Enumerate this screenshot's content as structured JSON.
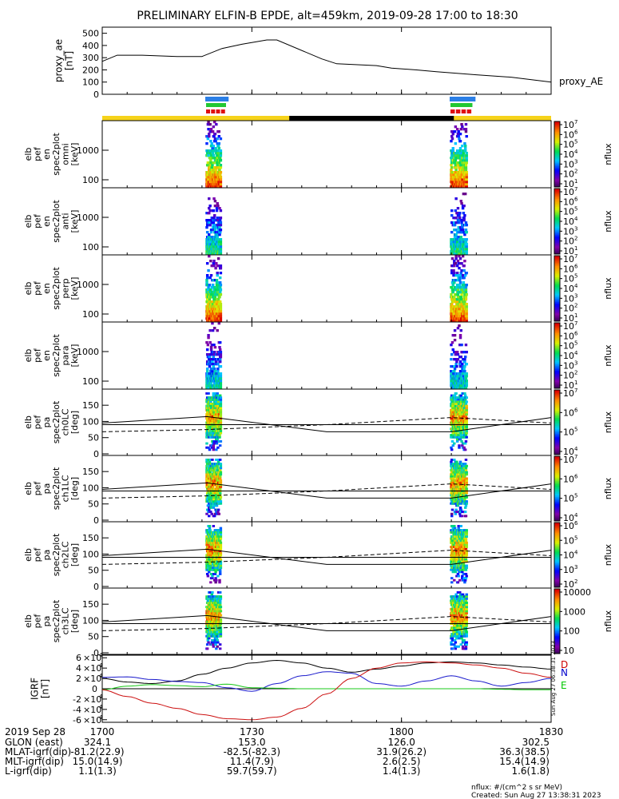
{
  "title": "PRELIMINARY ELFIN-B EPDE, alt=459km, 2019-09-28 17:00 to 18:30",
  "chart_data": {
    "type": "heatmap",
    "time_range": [
      "17:00",
      "18:30"
    ],
    "x_ticks": [
      "1700",
      "1730",
      "1800",
      "1830"
    ],
    "x_tick_minutes": [
      0,
      30,
      60,
      90
    ],
    "ae_panel": {
      "ylabel_lines": [
        "proxy_ae",
        "[nT]"
      ],
      "ylim": [
        0,
        550
      ],
      "yticks": [
        "0",
        "100",
        "200",
        "300",
        "400",
        "500"
      ],
      "legend": "proxy_AE",
      "t": [
        0,
        3,
        8,
        15,
        20,
        24,
        28,
        33,
        35,
        44,
        47,
        55,
        58,
        63,
        67,
        75,
        82,
        90
      ],
      "v": [
        270,
        320,
        320,
        310,
        310,
        375,
        410,
        445,
        445,
        290,
        250,
        235,
        215,
        200,
        185,
        160,
        140,
        100
      ]
    },
    "status_bars": {
      "science_zones": [
        [
          20.5,
          25.5
        ],
        [
          69.5,
          75.0
        ]
      ],
      "night_interval": [
        37.5,
        70.5
      ],
      "colors": {
        "blue": "#2b7fe6",
        "green": "#22c832",
        "red": "#e01010",
        "yellow": "#f6d31b",
        "black": "#000000"
      }
    },
    "energy_panels": [
      {
        "ylabel_lines": [
          "elb",
          "pef",
          "en",
          "spec2plot",
          "omni",
          "[keV]"
        ],
        "yticks": [
          "100",
          "1000"
        ],
        "cbar_ticks": [
          "10",
          "10",
          "10",
          "10",
          "10",
          "10",
          "10"
        ],
        "cbar_exps": [
          "1",
          "2",
          "3",
          "4",
          "5",
          "6",
          "7"
        ],
        "cbar_label": "nflux",
        "intensity": 1.0
      },
      {
        "ylabel_lines": [
          "elb",
          "pef",
          "en",
          "spec2plot",
          "anti",
          "[keV]"
        ],
        "yticks": [
          "100",
          "1000"
        ],
        "cbar_ticks": [
          "10",
          "10",
          "10",
          "10",
          "10",
          "10",
          "10"
        ],
        "cbar_exps": [
          "1",
          "2",
          "3",
          "4",
          "5",
          "6",
          "7"
        ],
        "cbar_label": "nflux",
        "intensity": 0.55
      },
      {
        "ylabel_lines": [
          "elb",
          "pef",
          "en",
          "spec2plot",
          "perp",
          "[keV]"
        ],
        "yticks": [
          "100",
          "1000"
        ],
        "cbar_ticks": [
          "10",
          "10",
          "10",
          "10",
          "10",
          "10",
          "10"
        ],
        "cbar_exps": [
          "1",
          "2",
          "3",
          "4",
          "5",
          "6",
          "7"
        ],
        "cbar_label": "nflux",
        "intensity": 1.0
      },
      {
        "ylabel_lines": [
          "elb",
          "pef",
          "en",
          "spec2plot",
          "para",
          "[keV]"
        ],
        "yticks": [
          "100",
          "1000"
        ],
        "cbar_ticks": [
          "10",
          "10",
          "10",
          "10",
          "10",
          "10",
          "10"
        ],
        "cbar_exps": [
          "1",
          "2",
          "3",
          "4",
          "5",
          "6",
          "7"
        ],
        "cbar_label": "nflux",
        "intensity": 0.5
      }
    ],
    "pitch_panels": [
      {
        "ylabel_lines": [
          "elb",
          "pef",
          "pa",
          "spec2plot",
          "ch0LC",
          "[deg]"
        ],
        "yticks": [
          "0",
          "50",
          "100",
          "150"
        ],
        "cbar_ticks": [
          "10",
          "10",
          "10",
          "10"
        ],
        "cbar_exps": [
          "4",
          "5",
          "6",
          "7"
        ],
        "cbar_label": "nflux"
      },
      {
        "ylabel_lines": [
          "elb",
          "pef",
          "pa",
          "spec2plot",
          "ch1LC",
          "[deg]"
        ],
        "yticks": [
          "0",
          "50",
          "100",
          "150"
        ],
        "cbar_ticks": [
          "10",
          "10",
          "10",
          "10"
        ],
        "cbar_exps": [
          "4",
          "5",
          "6",
          "7"
        ],
        "cbar_label": "nflux"
      },
      {
        "ylabel_lines": [
          "elb",
          "pef",
          "pa",
          "spec2plot",
          "ch2LC",
          "[deg]"
        ],
        "yticks": [
          "0",
          "50",
          "100",
          "150"
        ],
        "cbar_ticks": [
          "10",
          "10",
          "10",
          "10",
          "10"
        ],
        "cbar_exps": [
          "2",
          "3",
          "4",
          "5",
          "6"
        ],
        "cbar_label": "nflux"
      },
      {
        "ylabel_lines": [
          "elb",
          "pef",
          "pa",
          "spec2plot",
          "ch3LC",
          "[deg]"
        ],
        "yticks": [
          "0",
          "50",
          "100",
          "150"
        ],
        "cbar_ticks": [
          "10",
          "100",
          "1000",
          "10000"
        ],
        "cbar_exps": [
          "",
          "",
          "",
          ""
        ],
        "cbar_label": "nflux"
      }
    ],
    "loss_cone_deg": {
      "t": [
        0,
        21,
        45,
        70,
        90
      ],
      "solid": [
        95,
        115,
        68,
        68,
        112
      ],
      "dashed": [
        68,
        75,
        90,
        112,
        95
      ],
      "horizontal": 90
    },
    "mag_panel": {
      "ylabel_lines": [
        "IGRF",
        "[nT]"
      ],
      "ylim": [
        -65000,
        65000
      ],
      "ytick_mant": [
        "-6",
        "-4",
        "-2",
        "0",
        "2",
        "4",
        "6"
      ],
      "ytick_vals": [
        -60000,
        -40000,
        -20000,
        0,
        20000,
        40000,
        60000
      ],
      "labels": [
        "N",
        "E",
        "D"
      ],
      "label_colors": [
        "#0000cc",
        "#00c800",
        "#cc0000"
      ],
      "side_text": "Sun Aug 27 06:38:31 2023",
      "t": [
        0,
        5,
        10,
        15,
        20,
        25,
        30,
        35,
        40,
        45,
        50,
        55,
        60,
        65,
        70,
        75,
        80,
        85,
        90
      ],
      "black": [
        20000,
        13000,
        10000,
        15000,
        28000,
        40000,
        50000,
        55000,
        50000,
        40000,
        32000,
        38000,
        44000,
        50000,
        52000,
        50000,
        46000,
        42000,
        38000
      ],
      "blue": [
        22000,
        23000,
        18000,
        14000,
        12000,
        2000,
        -5000,
        10000,
        25000,
        33000,
        30000,
        10000,
        5000,
        15000,
        25000,
        15000,
        5000,
        12000,
        20000
      ],
      "green": [
        -2000,
        5000,
        8000,
        6000,
        4000,
        9000,
        2000,
        1000,
        0,
        0,
        0,
        0,
        0,
        0,
        0,
        0,
        -1000,
        -2000,
        -2000
      ],
      "red": [
        -2000,
        -15000,
        -28000,
        -38000,
        -50000,
        -58000,
        -60000,
        -55000,
        -38000,
        -10000,
        20000,
        40000,
        50000,
        52000,
        50000,
        46000,
        40000,
        30000,
        22000
      ]
    },
    "ephemeris": {
      "header_date": "2019 Sep 28",
      "rows": [
        {
          "label": "GLON (east)",
          "values": [
            "324.1",
            "153.0",
            "126.0",
            "302.5"
          ]
        },
        {
          "label": "MLAT-igrf(dip)",
          "values": [
            "-81.2(22.9)",
            "-82.5(-82.3)",
            "31.9(26.2)",
            "36.3(38.5)"
          ]
        },
        {
          "label": "MLT-igrf(dip)",
          "values": [
            "15.0(14.9)",
            "11.4(7.9)",
            "2.6(2.5)",
            "15.4(14.9)"
          ]
        },
        {
          "label": "L-igrf(dip)",
          "values": [
            "1.1(1.3)",
            "59.7(59.7)",
            "1.4(1.3)",
            "1.6(1.8)"
          ]
        }
      ]
    },
    "footer": [
      "nflux: #/(cm^2 s sr MeV)",
      "Created: Sun Aug 27 13:38:31 2023"
    ]
  }
}
